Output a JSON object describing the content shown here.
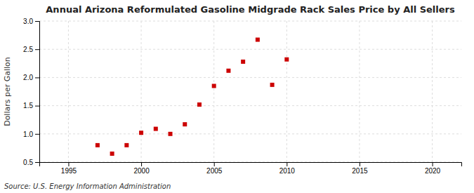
{
  "chart_data": {
    "type": "scatter",
    "title": "Annual Arizona Reformulated Gasoline Midgrade Rack Sales Price by All Sellers",
    "ylabel": "Dollars per Gallon",
    "annotations": [
      "Source: U.S. Energy Information Administration"
    ],
    "x": [
      1997,
      1998,
      1999,
      2000,
      2001,
      2002,
      2003,
      2004,
      2005,
      2006,
      2007,
      2008,
      2009,
      2010
    ],
    "values": [
      0.8,
      0.65,
      0.8,
      1.02,
      1.09,
      1.0,
      1.17,
      1.52,
      1.85,
      2.12,
      2.28,
      2.67,
      1.87,
      2.32
    ],
    "color": "#cc0000",
    "marker": "square",
    "xlim": [
      1993,
      2022
    ],
    "ylim": [
      0.5,
      3.0
    ],
    "xticks": [
      1995,
      2000,
      2005,
      2010,
      2015,
      2020
    ],
    "yticks": [
      0.5,
      {
        "value": 1.0,
        "label": "1.0"
      },
      1.5,
      {
        "value": 2.0,
        "label": "2.0"
      },
      2.5,
      {
        "value": 3.0,
        "label": "3.0"
      }
    ],
    "grid": true
  }
}
